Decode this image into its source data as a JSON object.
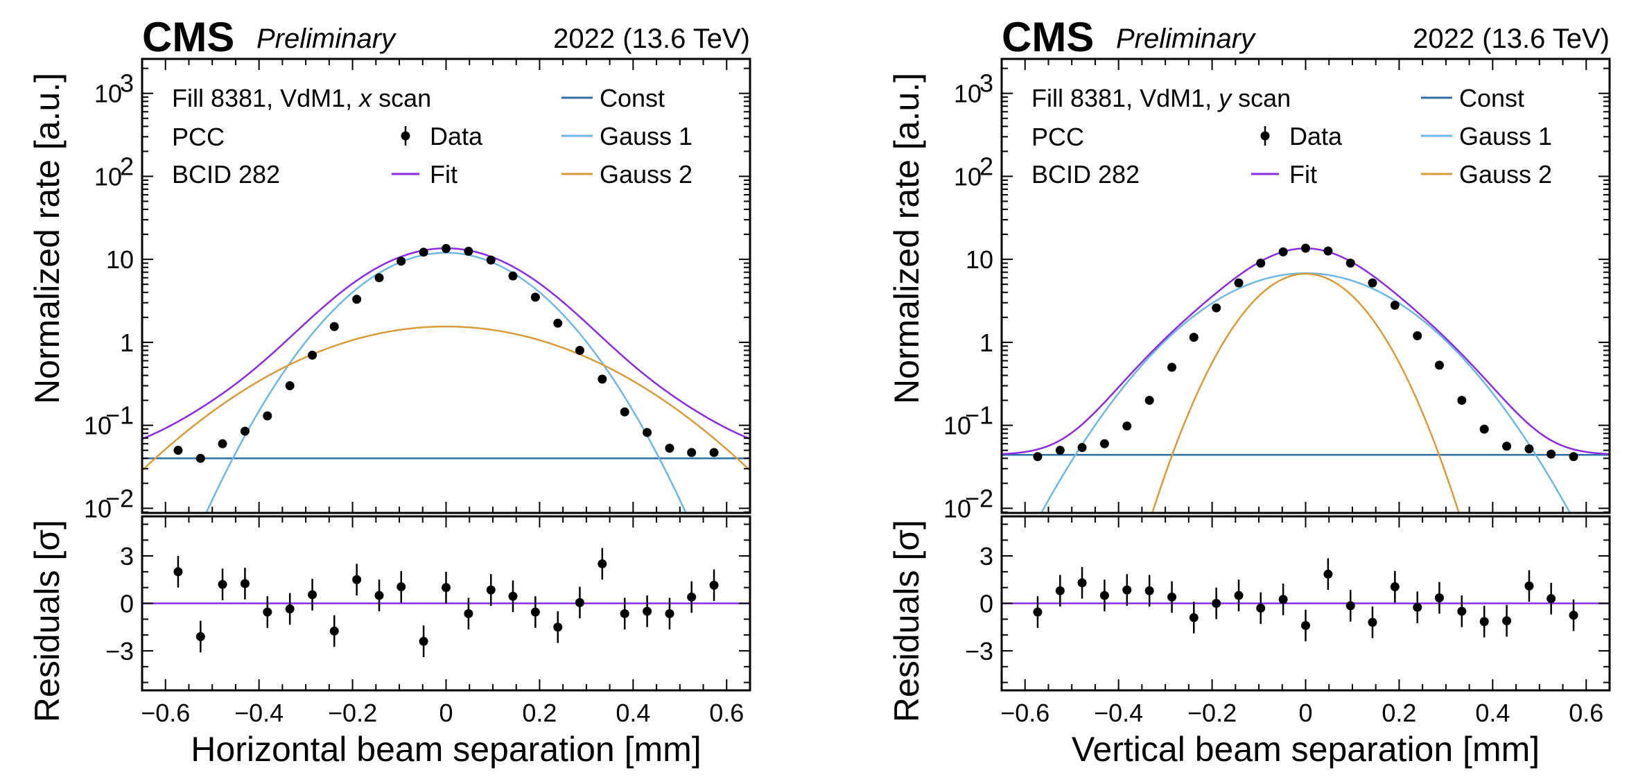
{
  "colors": {
    "const": "#2f6fa8",
    "gauss1": "#6fb6e3",
    "gauss2": "#d79b3a",
    "fit": "#8a2be2",
    "data": "#000000",
    "zero_line": "#8a2be2"
  },
  "chart_data": [
    {
      "type": "scatter",
      "header": {
        "experiment": "CMS",
        "status": "Preliminary",
        "lumi": "2022 (13.6 TeV)"
      },
      "info": {
        "line1_prefix": "Fill 8381, VdM1, ",
        "line1_var": "x",
        "line1_suffix": " scan",
        "line2": "PCC",
        "line3": "BCID 282"
      },
      "legend": {
        "data": "Data",
        "fit": "Fit",
        "const": "Const",
        "gauss1": "Gauss 1",
        "gauss2": "Gauss 2"
      },
      "xlabel": "Horizontal beam separation [mm]",
      "ylabel_top": "Normalized rate [a.u.]",
      "ylabel_bottom": "Residuals [σ]",
      "xlim": [
        -0.65,
        0.65
      ],
      "xticks": [
        {
          "v": -0.6,
          "label": "−0.6"
        },
        {
          "v": -0.4,
          "label": "−0.4"
        },
        {
          "v": -0.2,
          "label": "−0.2"
        },
        {
          "v": 0,
          "label": "0"
        },
        {
          "v": 0.2,
          "label": "0.2"
        },
        {
          "v": 0.4,
          "label": "0.4"
        },
        {
          "v": 0.6,
          "label": "0.6"
        }
      ],
      "ylim_top": [
        0.0088,
        2600
      ],
      "yscale_top": "log",
      "yticks_top": [
        {
          "v": 0.01,
          "base": "10",
          "exp": "−2"
        },
        {
          "v": 0.1,
          "base": "10",
          "exp": "−1"
        },
        {
          "v": 1,
          "base": "1",
          "exp": ""
        },
        {
          "v": 10,
          "base": "10",
          "exp": ""
        },
        {
          "v": 100,
          "base": "10",
          "exp": "2"
        },
        {
          "v": 1000,
          "base": "10",
          "exp": "3"
        }
      ],
      "ylim_bottom": [
        -5.5,
        5.5
      ],
      "yticks_bottom": [
        {
          "v": -3,
          "label": "−3"
        },
        {
          "v": 0,
          "label": "0"
        },
        {
          "v": 3,
          "label": "3"
        }
      ],
      "model": {
        "const": 0.04,
        "g1_amp": 12.0,
        "g1_sigma": 0.135,
        "g2_amp": 1.55,
        "g2_sigma": 0.23
      },
      "x": [
        -0.573,
        -0.525,
        -0.478,
        -0.43,
        -0.382,
        -0.334,
        -0.286,
        -0.239,
        -0.191,
        -0.143,
        -0.096,
        -0.048,
        0.0,
        0.048,
        0.096,
        0.143,
        0.191,
        0.239,
        0.286,
        0.334,
        0.382,
        0.43,
        0.478,
        0.525,
        0.573
      ],
      "y": [
        0.05,
        0.04,
        0.06,
        0.085,
        0.13,
        0.3,
        0.7,
        1.55,
        3.3,
        6.0,
        9.5,
        12.2,
        13.5,
        12.5,
        9.8,
        6.3,
        3.5,
        1.7,
        0.8,
        0.36,
        0.145,
        0.082,
        0.053,
        0.047,
        0.047
      ],
      "residuals": [
        2.0,
        -2.1,
        1.2,
        1.25,
        -0.55,
        -0.35,
        0.55,
        -1.75,
        1.5,
        0.5,
        1.05,
        -2.4,
        1.0,
        -0.65,
        0.85,
        0.45,
        -0.55,
        -1.5,
        0.05,
        2.5,
        -0.65,
        -0.5,
        -0.65,
        0.4,
        1.15
      ],
      "residual_err": 1.0
    },
    {
      "type": "scatter",
      "header": {
        "experiment": "CMS",
        "status": "Preliminary",
        "lumi": "2022 (13.6 TeV)"
      },
      "info": {
        "line1_prefix": "Fill 8381, VdM1, ",
        "line1_var": "y",
        "line1_suffix": " scan",
        "line2": "PCC",
        "line3": "BCID 282"
      },
      "legend": {
        "data": "Data",
        "fit": "Fit",
        "const": "Const",
        "gauss1": "Gauss 1",
        "gauss2": "Gauss 2"
      },
      "xlabel": "Vertical beam separation [mm]",
      "ylabel_top": "Normalized rate [a.u.]",
      "ylabel_bottom": "Residuals [σ]",
      "xlim": [
        -0.65,
        0.65
      ],
      "xticks": [
        {
          "v": -0.6,
          "label": "−0.6"
        },
        {
          "v": -0.4,
          "label": "−0.4"
        },
        {
          "v": -0.2,
          "label": "−0.2"
        },
        {
          "v": 0,
          "label": "0"
        },
        {
          "v": 0.2,
          "label": "0.2"
        },
        {
          "v": 0.4,
          "label": "0.4"
        },
        {
          "v": 0.6,
          "label": "0.6"
        }
      ],
      "ylim_top": [
        0.0088,
        2600
      ],
      "yscale_top": "log",
      "yticks_top": [
        {
          "v": 0.01,
          "base": "10",
          "exp": "−2"
        },
        {
          "v": 0.1,
          "base": "10",
          "exp": "−1"
        },
        {
          "v": 1,
          "base": "1",
          "exp": ""
        },
        {
          "v": 10,
          "base": "10",
          "exp": ""
        },
        {
          "v": 100,
          "base": "10",
          "exp": "2"
        },
        {
          "v": 1000,
          "base": "10",
          "exp": "3"
        }
      ],
      "ylim_bottom": [
        -5.5,
        5.5
      ],
      "yticks_bottom": [
        {
          "v": -3,
          "label": "−3"
        },
        {
          "v": 0,
          "label": "0"
        },
        {
          "v": 3,
          "label": "3"
        }
      ],
      "model": {
        "const": 0.044,
        "g1_amp": 6.8,
        "g1_sigma": 0.155,
        "g2_amp": 6.7,
        "g2_sigma": 0.09
      },
      "x": [
        -0.573,
        -0.525,
        -0.478,
        -0.43,
        -0.382,
        -0.334,
        -0.286,
        -0.239,
        -0.191,
        -0.143,
        -0.096,
        -0.048,
        0.0,
        0.048,
        0.096,
        0.143,
        0.191,
        0.239,
        0.286,
        0.334,
        0.382,
        0.43,
        0.478,
        0.525,
        0.573
      ],
      "y": [
        0.042,
        0.05,
        0.054,
        0.06,
        0.098,
        0.2,
        0.5,
        1.15,
        2.6,
        5.2,
        9.0,
        12.3,
        13.6,
        12.6,
        9.0,
        5.2,
        2.8,
        1.2,
        0.53,
        0.2,
        0.09,
        0.056,
        0.052,
        0.045,
        0.042
      ],
      "residuals": [
        -0.55,
        0.8,
        1.3,
        0.5,
        0.85,
        0.8,
        0.4,
        -0.9,
        0.0,
        0.5,
        -0.3,
        0.25,
        -1.4,
        1.85,
        -0.15,
        -1.2,
        1.05,
        -0.25,
        0.35,
        -0.5,
        -1.15,
        -1.1,
        1.1,
        0.3,
        -0.75
      ],
      "residual_err": 1.0
    }
  ]
}
